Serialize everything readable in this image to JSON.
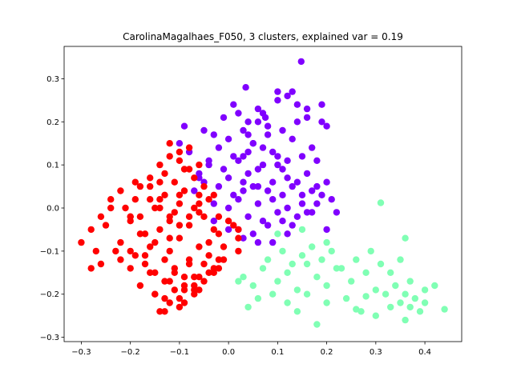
{
  "chart_data": {
    "type": "scatter",
    "title": "CarolinaMagalhaes_F050, 3 clusters, explained var = 0.19",
    "xlabel": "",
    "ylabel": "",
    "xlim": [
      -0.335,
      0.475
    ],
    "ylim": [
      -0.31,
      0.375
    ],
    "xticks": [
      -0.3,
      -0.2,
      -0.1,
      0.0,
      0.1,
      0.2,
      0.3,
      0.4
    ],
    "xtick_labels": [
      "−0.3",
      "−0.2",
      "−0.1",
      "0.0",
      "0.1",
      "0.2",
      "0.3",
      "0.4"
    ],
    "yticks": [
      -0.3,
      -0.2,
      -0.1,
      0.0,
      0.1,
      0.2,
      0.3
    ],
    "ytick_labels": [
      "−0.3",
      "−0.2",
      "−0.1",
      "0.0",
      "0.1",
      "0.2",
      "0.3"
    ],
    "grid": false,
    "legend": "none",
    "colors": {
      "cluster_a": "#ff0000",
      "cluster_b": "#8000ff",
      "cluster_c": "#80ffb4"
    },
    "series": [
      {
        "color": "#8000ff",
        "x": [
          0.148,
          0.035,
          0.1,
          0.06,
          0.14,
          0.16,
          0.2,
          0.19,
          0.075,
          0.12,
          0.04,
          -0.05,
          -0.03,
          0.0,
          -0.09,
          -0.1,
          -0.08,
          -0.02,
          0.03,
          0.05,
          0.08,
          0.11,
          0.13,
          0.17,
          0.18,
          0.15,
          0.09,
          0.07,
          0.02,
          -0.01,
          -0.04,
          -0.06,
          0.0,
          0.04,
          0.06,
          0.1,
          0.12,
          0.14,
          0.16,
          0.18,
          0.2,
          0.21,
          0.19,
          0.17,
          0.13,
          0.11,
          0.08,
          0.05,
          0.03,
          0.01,
          -0.02,
          -0.05,
          -0.07,
          -0.03,
          0.0,
          0.02,
          0.06,
          0.09,
          0.12,
          0.15,
          0.17,
          0.14,
          0.1,
          0.07,
          0.04,
          0.02,
          0.05,
          0.08,
          0.11,
          0.13,
          0.16,
          0.06,
          0.03,
          0.0,
          -0.03,
          0.01,
          0.04,
          0.07,
          0.1,
          0.12,
          0.09,
          0.06,
          0.03,
          0.05,
          0.08,
          0.02,
          0.11,
          0.14,
          -0.04,
          -0.06,
          0.22,
          0.2,
          0.18,
          0.15,
          0.12,
          0.09,
          0.06,
          0.04,
          0.07,
          0.1,
          0.13,
          0.16,
          0.19,
          0.01,
          -0.01,
          0.03
        ],
        "y": [
          0.34,
          0.28,
          0.27,
          0.23,
          0.24,
          0.21,
          0.19,
          0.24,
          0.21,
          0.26,
          0.2,
          0.18,
          0.17,
          0.16,
          0.19,
          0.15,
          0.13,
          0.14,
          0.12,
          0.15,
          0.17,
          0.18,
          0.16,
          0.14,
          0.11,
          0.12,
          0.13,
          0.1,
          0.11,
          0.09,
          0.1,
          0.08,
          0.07,
          0.08,
          0.09,
          0.1,
          0.07,
          0.06,
          0.08,
          0.05,
          0.06,
          0.02,
          0.03,
          0.04,
          0.05,
          0.03,
          0.04,
          0.05,
          0.04,
          0.03,
          0.05,
          0.06,
          0.04,
          0.01,
          0.0,
          0.02,
          0.01,
          0.02,
          0.0,
          0.01,
          -0.01,
          -0.02,
          -0.01,
          -0.03,
          -0.02,
          -0.05,
          -0.06,
          -0.04,
          -0.03,
          -0.04,
          -0.01,
          -0.08,
          -0.07,
          -0.05,
          -0.03,
          0.12,
          0.13,
          0.14,
          0.12,
          0.11,
          0.06,
          0.05,
          0.06,
          0.15,
          0.19,
          0.22,
          0.09,
          0.2,
          0.11,
          0.07,
          -0.01,
          -0.05,
          0.01,
          0.03,
          -0.06,
          -0.08,
          0.2,
          0.17,
          0.22,
          0.25,
          0.27,
          0.23,
          0.2,
          0.24,
          0.21,
          0.18
        ]
      },
      {
        "color": "#ff0000",
        "x": [
          -0.3,
          -0.28,
          -0.27,
          -0.25,
          -0.22,
          -0.2,
          -0.19,
          -0.17,
          -0.15,
          -0.13,
          -0.12,
          -0.1,
          -0.08,
          -0.06,
          -0.04,
          -0.02,
          0.0,
          0.02,
          -0.24,
          -0.21,
          -0.18,
          -0.16,
          -0.14,
          -0.11,
          -0.09,
          -0.07,
          -0.05,
          -0.03,
          -0.01,
          0.01,
          -0.26,
          -0.23,
          -0.2,
          -0.17,
          -0.15,
          -0.12,
          -0.1,
          -0.08,
          -0.06,
          -0.04,
          -0.02,
          -0.19,
          -0.16,
          -0.13,
          -0.11,
          -0.09,
          -0.07,
          -0.05,
          -0.03,
          -0.14,
          -0.12,
          -0.1,
          -0.08,
          -0.06,
          -0.12,
          -0.1,
          -0.08,
          -0.13,
          -0.11,
          -0.09,
          -0.07,
          -0.05,
          -0.15,
          -0.13,
          -0.11,
          -0.09,
          -0.07,
          -0.14,
          -0.1,
          -0.06,
          -0.2,
          -0.18,
          -0.16,
          -0.14,
          -0.12,
          -0.22,
          -0.19,
          -0.17,
          -0.15,
          -0.13,
          -0.11,
          -0.09,
          -0.07,
          -0.05,
          -0.03,
          -0.01,
          0.02,
          -0.24,
          -0.2,
          -0.16,
          -0.12,
          -0.08,
          -0.04,
          -0.22,
          -0.18,
          -0.14,
          -0.1,
          -0.06,
          -0.02,
          -0.2,
          -0.16,
          -0.12,
          -0.08,
          -0.04,
          -0.18,
          -0.15,
          -0.12,
          -0.09,
          -0.06,
          -0.03,
          -0.13,
          -0.1,
          -0.07,
          -0.14,
          -0.1,
          -0.06,
          -0.02,
          0.02,
          -0.26,
          -0.28
        ],
        "y": [
          -0.08,
          -0.05,
          -0.1,
          -0.04,
          -0.12,
          -0.02,
          0.02,
          -0.06,
          0.0,
          0.03,
          -0.03,
          0.01,
          -0.04,
          -0.01,
          0.02,
          -0.06,
          -0.03,
          -0.07,
          0.02,
          0.0,
          -0.02,
          0.05,
          0.02,
          -0.01,
          0.04,
          0.0,
          -0.02,
          -0.05,
          -0.09,
          -0.04,
          -0.13,
          -0.1,
          -0.14,
          -0.11,
          -0.08,
          -0.1,
          -0.07,
          -0.12,
          -0.09,
          -0.11,
          -0.14,
          0.06,
          0.07,
          0.08,
          0.06,
          0.09,
          0.07,
          0.05,
          0.03,
          0.1,
          0.12,
          0.11,
          0.09,
          0.1,
          0.15,
          0.13,
          0.14,
          -0.17,
          -0.15,
          -0.18,
          -0.16,
          -0.13,
          -0.2,
          -0.21,
          -0.19,
          -0.22,
          -0.2,
          -0.24,
          -0.23,
          -0.19,
          -0.03,
          -0.06,
          -0.09,
          -0.05,
          -0.07,
          -0.08,
          -0.11,
          -0.13,
          -0.15,
          -0.12,
          -0.14,
          -0.16,
          -0.18,
          -0.17,
          -0.15,
          -0.12,
          -0.1,
          0.0,
          -0.02,
          0.02,
          -0.02,
          -0.02,
          -0.08,
          0.04,
          0.05,
          0.06,
          0.03,
          0.03,
          -0.12,
          -0.1,
          -0.15,
          -0.17,
          -0.13,
          -0.15,
          -0.18,
          -0.2,
          -0.22,
          -0.19,
          -0.16,
          -0.14,
          -0.24,
          -0.21,
          -0.19,
          0.0,
          -0.04,
          0.01,
          -0.02,
          -0.05,
          -0.02,
          -0.14
        ]
      },
      {
        "color": "#80ffb4",
        "x": [
          0.03,
          0.05,
          0.07,
          0.09,
          0.1,
          0.12,
          0.14,
          0.16,
          0.18,
          0.2,
          0.22,
          0.25,
          0.28,
          0.3,
          0.32,
          0.34,
          0.35,
          0.36,
          0.37,
          0.38,
          0.39,
          0.4,
          0.42,
          0.44,
          0.08,
          0.11,
          0.13,
          0.15,
          0.17,
          0.19,
          0.21,
          0.23,
          0.26,
          0.29,
          0.31,
          0.33,
          0.35,
          0.37,
          0.12,
          0.14,
          0.16,
          0.18,
          0.2,
          0.24,
          0.27,
          0.3,
          0.33,
          0.36,
          0.06,
          0.04,
          0.02,
          0.1,
          0.15,
          0.2,
          0.31,
          0.36,
          0.4,
          0.26,
          0.28
        ],
        "y": [
          -0.16,
          -0.18,
          -0.14,
          -0.2,
          -0.17,
          -0.15,
          -0.19,
          -0.13,
          -0.16,
          -0.18,
          -0.14,
          -0.17,
          -0.15,
          -0.19,
          -0.2,
          -0.18,
          -0.22,
          -0.2,
          -0.23,
          -0.21,
          -0.24,
          -0.22,
          -0.18,
          -0.235,
          -0.12,
          -0.1,
          -0.13,
          -0.11,
          -0.09,
          -0.12,
          -0.1,
          -0.14,
          -0.12,
          -0.1,
          -0.13,
          -0.15,
          -0.12,
          -0.17,
          -0.22,
          -0.24,
          -0.2,
          -0.27,
          -0.22,
          -0.21,
          -0.24,
          -0.25,
          -0.23,
          -0.26,
          -0.21,
          -0.23,
          -0.17,
          -0.06,
          -0.05,
          -0.08,
          0.012,
          -0.07,
          -0.19,
          -0.235,
          -0.205
        ]
      }
    ]
  }
}
